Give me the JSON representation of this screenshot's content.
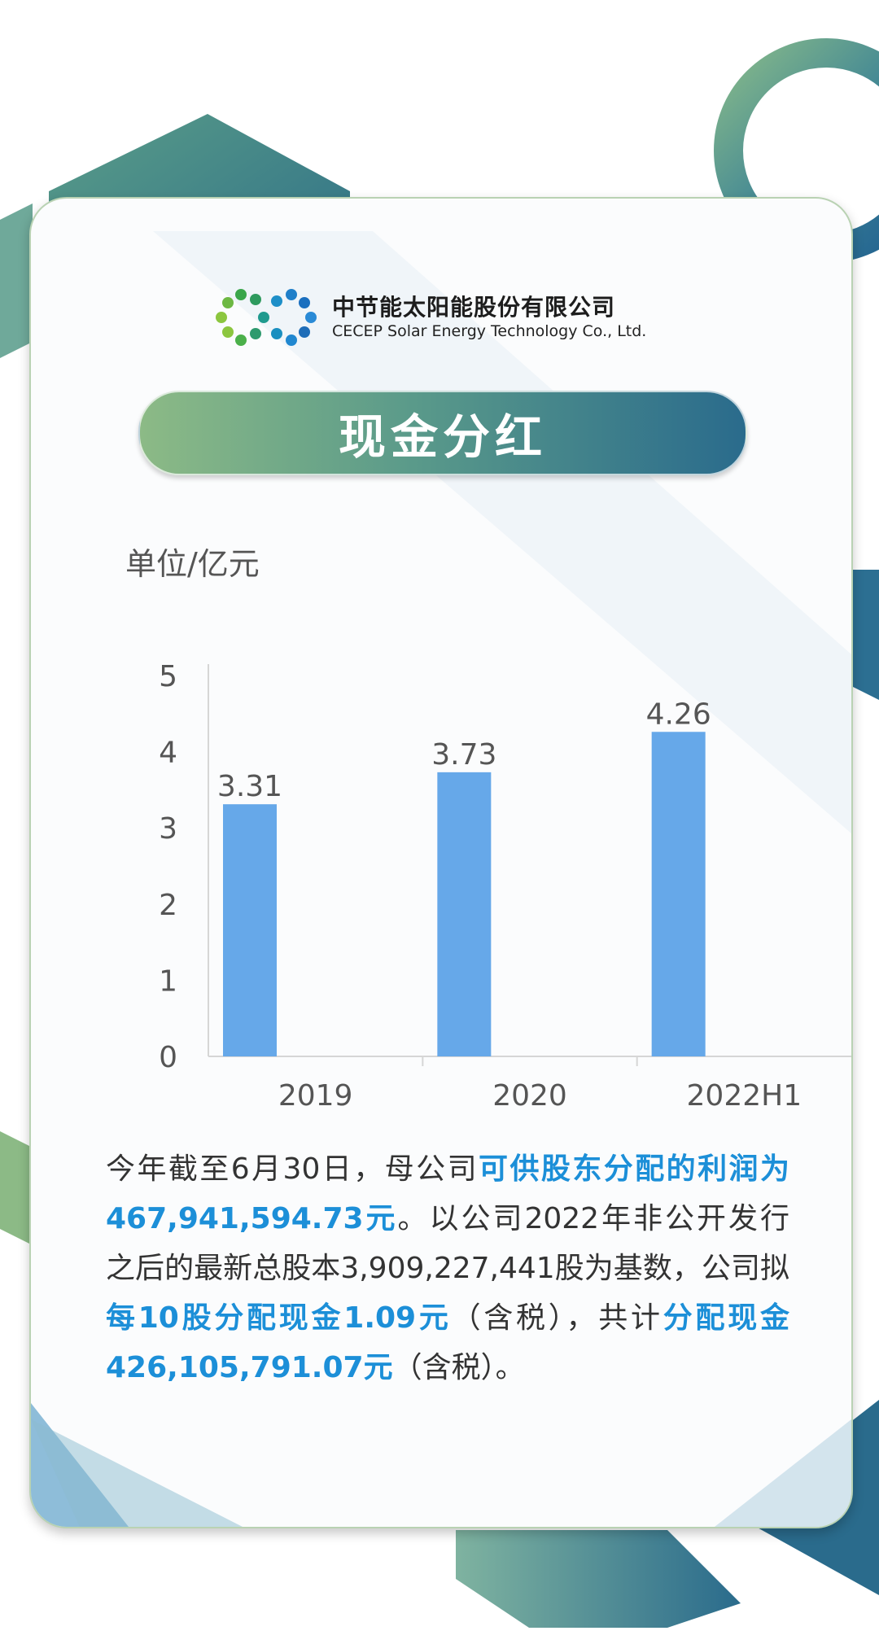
{
  "company": {
    "name_cn": "中节能太阳能股份有限公司",
    "name_en": "CECEP Solar Energy Technology Co., Ltd."
  },
  "title": "现金分红",
  "unit_label": "单位/亿元",
  "colors": {
    "bar": "#66a8e9",
    "highlight": "#1c8fd8",
    "green": "#8cba86",
    "teal": "#2a6b8c"
  },
  "chart_data": {
    "type": "bar",
    "categories": [
      "2019",
      "2020",
      "2022H1"
    ],
    "values": [
      3.31,
      3.73,
      4.26
    ],
    "value_labels": [
      "3.31",
      "3.73",
      "4.26"
    ],
    "ylim": [
      0,
      5
    ],
    "yticks": [
      "0",
      "1",
      "2",
      "3",
      "4",
      "5"
    ],
    "grid": false,
    "title": "",
    "xlabel": "",
    "ylabel": "单位/亿元"
  },
  "paragraph": {
    "p1": "今年截至6月30日，母公司",
    "h1": "可供股东分配的利润为467,941,594.73元",
    "p2": "。以公司2022年非公开发行之后的最新总股本3,909,227,441股为基数，公司拟",
    "h2": "每10股分配现金1.09元",
    "p3": "（含税），共计",
    "h3": "分配现金426,105,791.07元",
    "p4": "（含税）。"
  }
}
